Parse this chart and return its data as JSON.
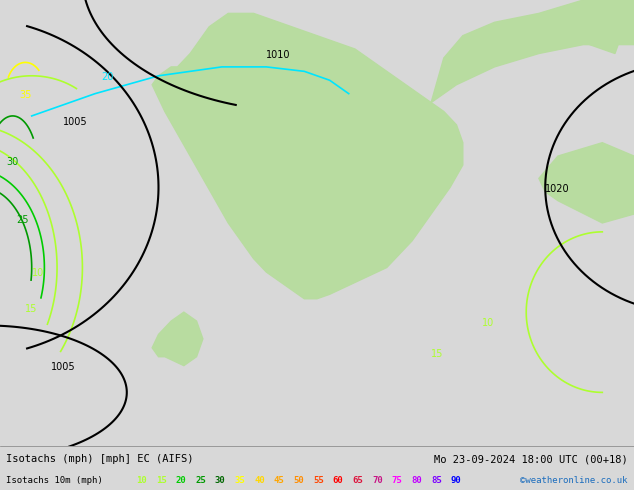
{
  "title_left": "Isotachs (mph) [mph] EC (AIFS)",
  "title_right": "Mo 23-09-2024 18:00 UTC (00+18)",
  "legend_label": "Isotachs 10m (mph)",
  "copyright": "©weatheronline.co.uk",
  "legend_values": [
    "10",
    "15",
    "20",
    "25",
    "30",
    "35",
    "40",
    "45",
    "50",
    "55",
    "60",
    "65",
    "70",
    "75",
    "80",
    "85",
    "90"
  ],
  "legend_colors": [
    "#adff2f",
    "#adff2f",
    "#00cc00",
    "#009900",
    "#006600",
    "#ffff00",
    "#ffd700",
    "#ffa500",
    "#ff8c00",
    "#ff4500",
    "#ff0000",
    "#dc143c",
    "#c71585",
    "#ff00ff",
    "#bf00ff",
    "#7b00ff",
    "#0000ff"
  ],
  "bg_color": "#d8d8d8",
  "map_bg": "#e8e8e8",
  "bottom_bar_bg": "#ffffff",
  "fig_width": 6.34,
  "fig_height": 4.9,
  "dpi": 100
}
